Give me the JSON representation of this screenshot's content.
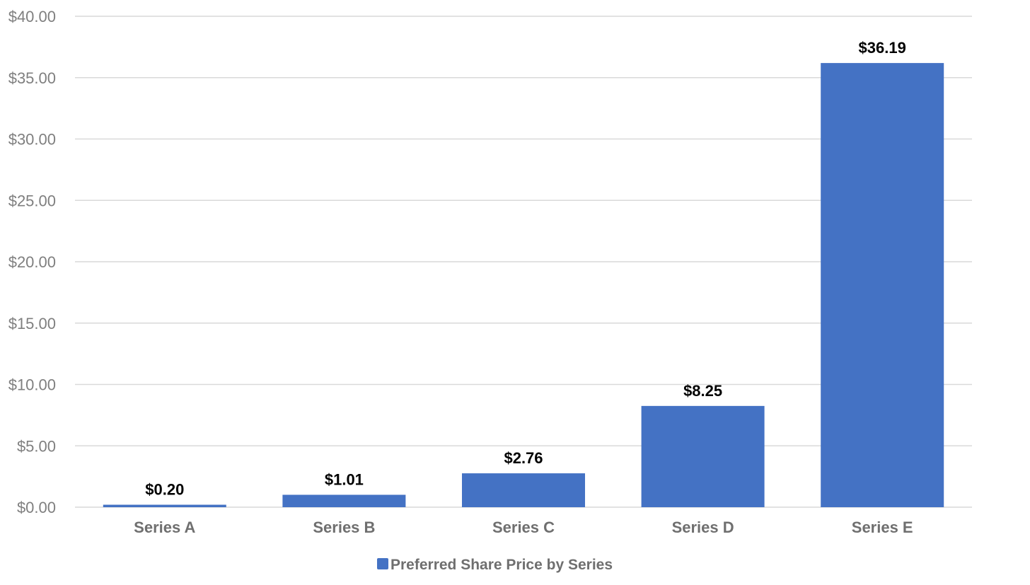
{
  "chart_data": {
    "type": "bar",
    "categories": [
      "Series A",
      "Series B",
      "Series C",
      "Series D",
      "Series E"
    ],
    "series": [
      {
        "name": "Preferred Share Price by Series",
        "values": [
          0.2,
          1.01,
          2.76,
          8.25,
          36.19
        ],
        "data_labels": [
          "$0.20",
          "$1.01",
          "$2.76",
          "$8.25",
          "$36.19"
        ],
        "color": "#4472c4"
      }
    ],
    "ylim": [
      0,
      40
    ],
    "yticks": [
      0,
      5,
      10,
      15,
      20,
      25,
      30,
      35,
      40
    ],
    "ytick_labels": [
      "$0.00",
      "$5.00",
      "$10.00",
      "$15.00",
      "$20.00",
      "$25.00",
      "$30.00",
      "$35.00",
      "$40.00"
    ],
    "grid": true,
    "legend_position": "bottom",
    "title": "",
    "xlabel": "",
    "ylabel": ""
  }
}
